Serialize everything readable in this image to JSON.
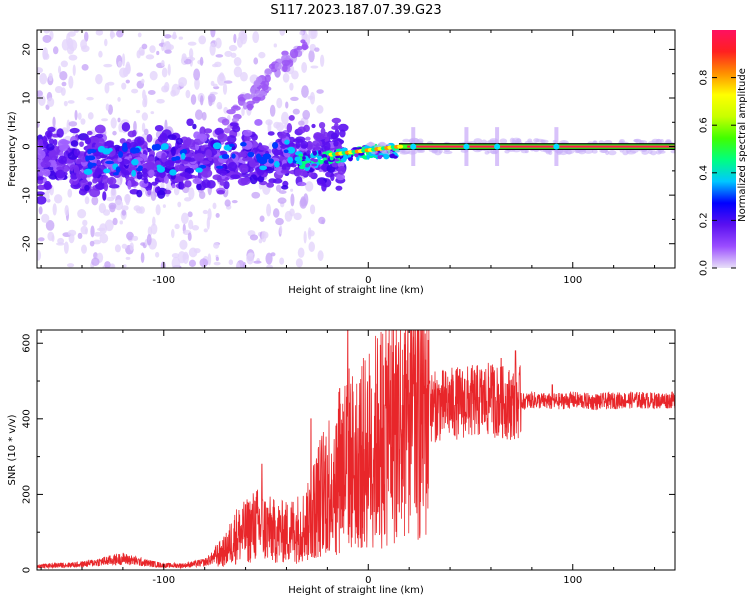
{
  "title": "S117.2023.187.07.39.G23",
  "colors": {
    "snr_line": "#e8262a",
    "background": "#ffffff",
    "axis": "#000000"
  },
  "chart_data": [
    {
      "type": "heatmap",
      "title": "",
      "xlabel": "Height of straight line (km)",
      "ylabel": "Frequency (Hz)",
      "xlim": [
        -162,
        150
      ],
      "ylim": [
        -25,
        24
      ],
      "xticks": [
        -100,
        0,
        100
      ],
      "yticks": [
        -20,
        -10,
        0,
        10,
        20
      ],
      "colorbar": {
        "label": "Normalized spectral amplitude",
        "range": [
          0,
          1
        ],
        "ticks": [
          0.0,
          0.2,
          0.4,
          0.6,
          0.8
        ],
        "colormap": [
          "#e8e0f8",
          "#9b4dff",
          "#5a10f0",
          "#0000ff",
          "#00c8ff",
          "#00ff80",
          "#40ff00",
          "#c8ff00",
          "#ffff00",
          "#ff9000",
          "#ff2020",
          "#ff1060"
        ]
      },
      "description_ridge": {
        "x": [
          -160,
          -120,
          -80,
          -40,
          -20,
          0,
          20,
          50,
          100,
          150
        ],
        "y": [
          -4,
          -4,
          -3,
          -2,
          -2,
          -1,
          0,
          0,
          0,
          0
        ]
      }
    },
    {
      "type": "line",
      "title": "",
      "xlabel": "Height of straight line (km)",
      "ylabel": "SNR (10 * v/v)",
      "xlim": [
        -162,
        150
      ],
      "ylim": [
        0,
        635
      ],
      "xticks": [
        -100,
        0,
        100
      ],
      "yticks": [
        0,
        200,
        400,
        600
      ],
      "series": [
        {
          "name": "SNR",
          "x": [
            -162,
            -140,
            -120,
            -110,
            -100,
            -90,
            -80,
            -70,
            -65,
            -60,
            -55,
            -50,
            -45,
            -40,
            -35,
            -30,
            -25,
            -20,
            -15,
            -10,
            -8,
            -5,
            0,
            5,
            10,
            15,
            20,
            25,
            30,
            35,
            40,
            50,
            60,
            70,
            80,
            90,
            100,
            110,
            120,
            130,
            140,
            150
          ],
          "values": [
            10,
            15,
            30,
            20,
            12,
            12,
            20,
            50,
            90,
            100,
            120,
            110,
            100,
            100,
            110,
            120,
            180,
            230,
            260,
            300,
            290,
            290,
            320,
            350,
            380,
            400,
            410,
            420,
            430,
            435,
            440,
            445,
            450,
            440,
            450,
            445,
            450,
            445,
            448,
            450,
            448,
            450
          ]
        }
      ],
      "peaks": {
        "x": [
          -52,
          -10,
          -14,
          -28,
          5,
          30,
          60,
          65,
          72,
          90
        ],
        "values": [
          280,
          635,
          480,
          400,
          440,
          500,
          540,
          560,
          580,
          490
        ]
      }
    }
  ]
}
